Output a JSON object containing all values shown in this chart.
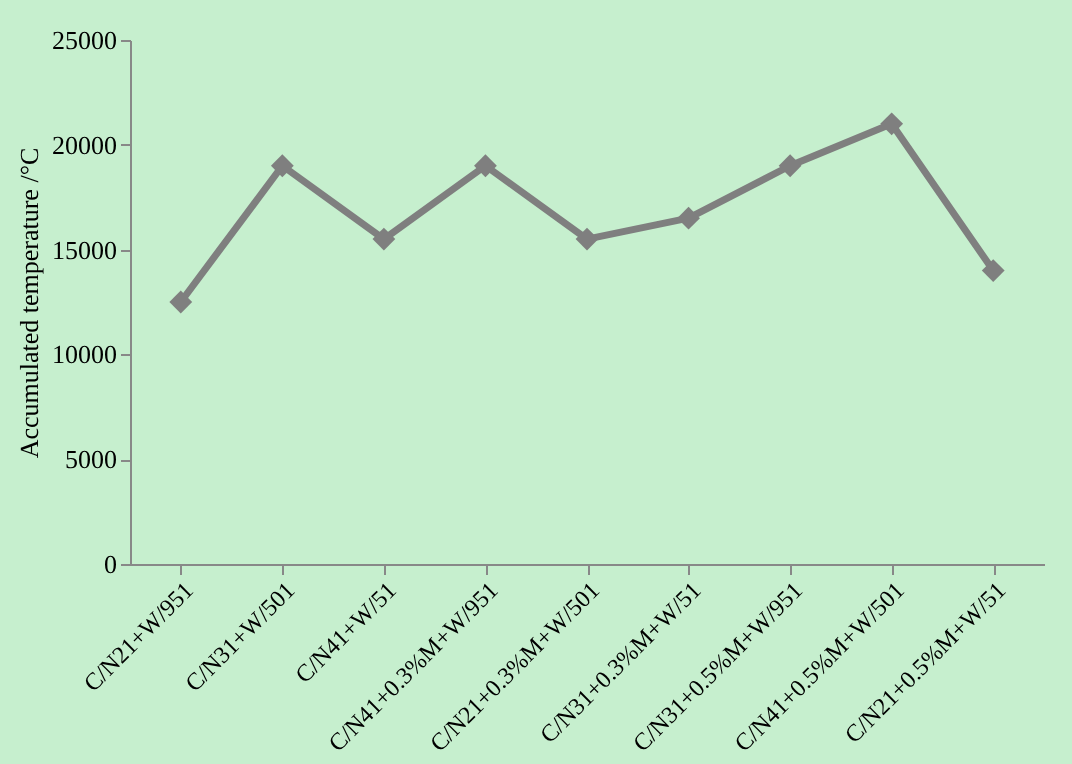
{
  "chart_data": {
    "type": "line",
    "ylabel": "Accumulated temperature /°C",
    "categories": [
      "C/N21+W/951",
      "C/N31+W/501",
      "C/N41+W/51",
      "C/N41+0.3%M+W/951",
      "C/N21+0.3%M+W/501",
      "C/N31+0.3%M+W/51",
      "C/N31+0.5%M+W/951",
      "C/N41+0.5%M+W/501",
      "C/N21+0.5%M+W/51"
    ],
    "series": [
      {
        "color": "#7f7f7f",
        "values": [
          12500,
          19000,
          15500,
          19000,
          15500,
          16500,
          19000,
          21000,
          14000
        ]
      }
    ],
    "ylim": [
      0,
      25000
    ],
    "yticks": [
      0,
      5000,
      10000,
      15000,
      20000,
      25000
    ],
    "grid": false,
    "legend": false,
    "marker": "diamond",
    "line_style": "solid"
  }
}
